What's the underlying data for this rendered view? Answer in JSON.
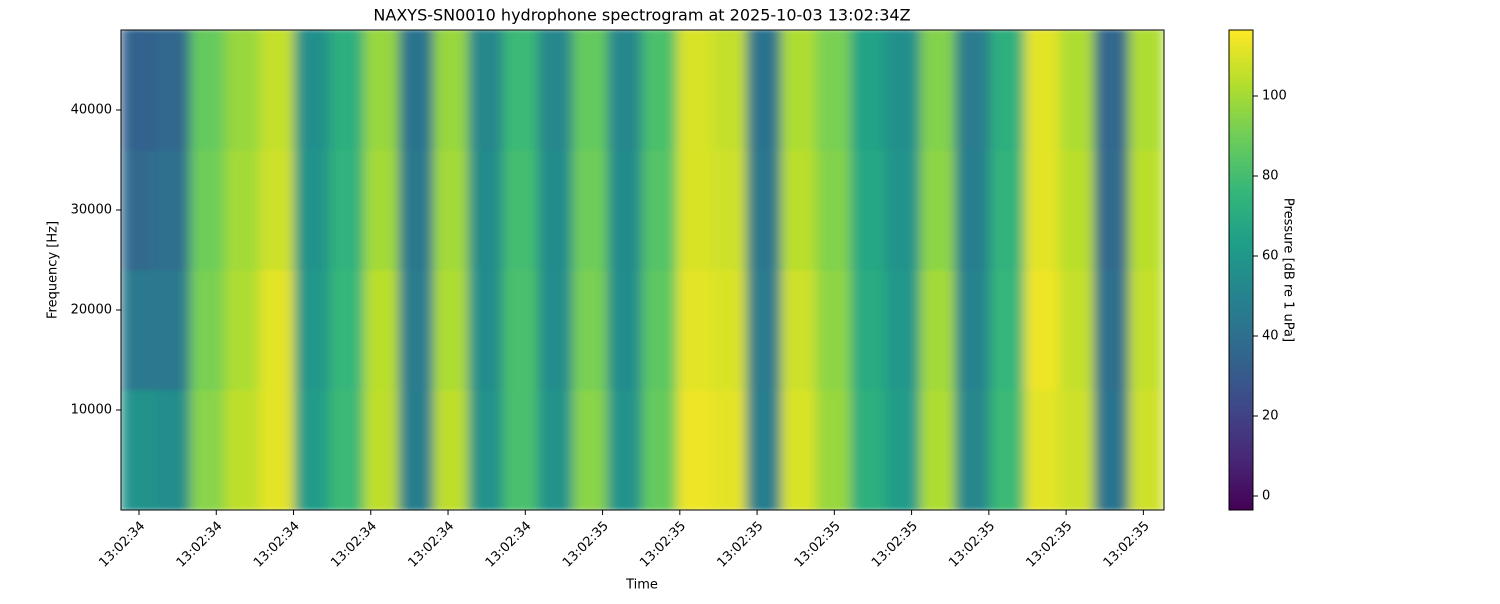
{
  "chart_data": {
    "type": "spectrogram",
    "title": "NAXYS-SN0010 hydrophone spectrogram at 2025-10-03 13:02:34Z",
    "xlabel": "Time",
    "ylabel": "Frequency [Hz]",
    "colorbar_label": "Pressure [dB re 1 uPa]",
    "xticks": [
      "13:02:34",
      "13:02:34",
      "13:02:34",
      "13:02:34",
      "13:02:34",
      "13:02:34",
      "13:02:35",
      "13:02:35",
      "13:02:35",
      "13:02:35",
      "13:02:35",
      "13:02:35",
      "13:02:35",
      "13:02:35"
    ],
    "ylim": [
      0,
      48000
    ],
    "yticks": [
      10000,
      20000,
      30000,
      40000
    ],
    "clim": [
      -3.5,
      116.5
    ],
    "cticks": [
      0,
      20,
      40,
      60,
      80,
      100
    ],
    "colormap": "viridis",
    "frequency_bins": [
      0,
      12000,
      24000,
      36000,
      48000
    ],
    "z": [
      [
        58,
        55,
        95,
        105,
        112,
        62,
        78,
        105,
        48,
        105,
        58,
        82,
        58,
        95,
        58,
        88,
        114,
        112,
        48,
        110,
        98,
        72,
        62,
        102,
        52,
        78,
        112,
        108,
        42,
        108
      ],
      [
        45,
        45,
        92,
        102,
        112,
        60,
        76,
        104,
        46,
        102,
        55,
        82,
        55,
        92,
        55,
        86,
        112,
        110,
        46,
        108,
        96,
        70,
        60,
        100,
        50,
        76,
        114,
        106,
        40,
        106
      ],
      [
        38,
        40,
        90,
        100,
        108,
        58,
        74,
        100,
        44,
        100,
        54,
        80,
        54,
        90,
        54,
        84,
        110,
        108,
        44,
        104,
        94,
        68,
        58,
        96,
        48,
        74,
        112,
        104,
        38,
        104
      ],
      [
        34,
        36,
        88,
        98,
        106,
        56,
        72,
        98,
        42,
        98,
        52,
        78,
        52,
        88,
        52,
        82,
        110,
        106,
        42,
        102,
        92,
        66,
        56,
        94,
        46,
        72,
        112,
        102,
        36,
        102
      ]
    ]
  }
}
